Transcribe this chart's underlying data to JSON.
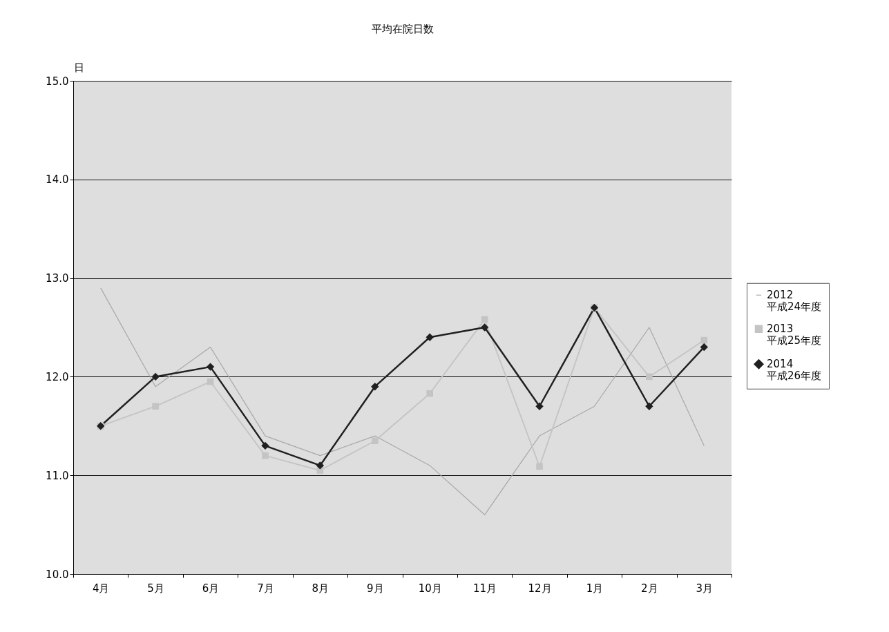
{
  "chart_data": {
    "type": "line",
    "title": "平均在院日数",
    "ylabel": "日",
    "categories": [
      "4月",
      "5月",
      "6月",
      "7月",
      "8月",
      "9月",
      "10月",
      "11月",
      "12月",
      "1月",
      "2月",
      "3月"
    ],
    "series": [
      {
        "name": "2012\n平成24年度",
        "color": "#a8a8a8",
        "marker": "none",
        "values": [
          12.9,
          11.9,
          12.3,
          11.4,
          11.2,
          11.4,
          11.1,
          10.6,
          11.4,
          11.7,
          12.5,
          11.3
        ]
      },
      {
        "name": "2013\n平成25年度",
        "color": "#c4c4c4",
        "marker": "square",
        "values": [
          11.5,
          11.7,
          11.95,
          11.2,
          11.05,
          11.35,
          11.83,
          12.58,
          11.09,
          12.7,
          12.0,
          12.37
        ]
      },
      {
        "name": "2014\n平成26年度",
        "color": "#202020",
        "marker": "diamond",
        "values": [
          11.5,
          12.0,
          12.1,
          11.3,
          11.1,
          11.9,
          12.4,
          12.5,
          11.7,
          12.7,
          11.7,
          12.3
        ]
      }
    ],
    "ylim": [
      10,
      15
    ],
    "yticks": [
      {
        "value": 10,
        "label": "10.0"
      },
      {
        "value": 11,
        "label": "11.0"
      },
      {
        "value": 12,
        "label": "12.0"
      },
      {
        "value": 13,
        "label": "13.0"
      },
      {
        "value": 14,
        "label": "14.0"
      },
      {
        "value": 15,
        "label": "15.0"
      }
    ],
    "grid": "y",
    "legend": "right",
    "line_style": "solid"
  }
}
